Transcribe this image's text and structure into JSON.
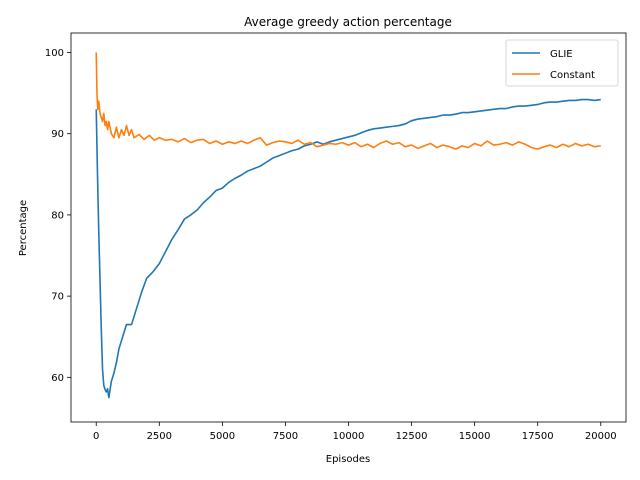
{
  "chart_data": {
    "type": "line",
    "title": "Average greedy action percentage",
    "xlabel": "Episodes",
    "ylabel": "Percentage",
    "xlim": [
      -1000,
      21000
    ],
    "ylim": [
      54.5,
      102.4
    ],
    "xticks": [
      0,
      2500,
      5000,
      7500,
      10000,
      12500,
      15000,
      17500,
      20000
    ],
    "yticks": [
      60,
      70,
      80,
      90,
      100
    ],
    "grid": false,
    "legend_position": "top-right",
    "series": [
      {
        "name": "GLIE",
        "color": "#1f77b4",
        "x": [
          0,
          50,
          100,
          150,
          200,
          250,
          300,
          350,
          400,
          450,
          500,
          600,
          700,
          800,
          900,
          1000,
          1200,
          1400,
          1600,
          1800,
          2000,
          2250,
          2500,
          2750,
          3000,
          3250,
          3500,
          3750,
          4000,
          4250,
          4500,
          4750,
          5000,
          5250,
          5500,
          5750,
          6000,
          6250,
          6500,
          6750,
          7000,
          7250,
          7500,
          7750,
          8000,
          8250,
          8500,
          8750,
          9000,
          9250,
          9500,
          9750,
          10000,
          10250,
          10500,
          10750,
          11000,
          11250,
          11500,
          11750,
          12000,
          12250,
          12500,
          12750,
          13000,
          13250,
          13500,
          13750,
          14000,
          14250,
          14500,
          14750,
          15000,
          15250,
          15500,
          15750,
          16000,
          16250,
          16500,
          16750,
          17000,
          17250,
          17500,
          17750,
          18000,
          18250,
          18500,
          18750,
          19000,
          19250,
          19500,
          19750,
          20000
        ],
        "values": [
          93,
          85,
          78,
          72,
          66,
          61,
          59,
          58.5,
          58.2,
          58.6,
          57.5,
          59.5,
          60.5,
          61.8,
          63.5,
          64.5,
          66.5,
          66.5,
          68.5,
          70.5,
          72.2,
          73,
          74,
          75.5,
          77,
          78.2,
          79.5,
          80,
          80.6,
          81.5,
          82.2,
          83,
          83.3,
          84,
          84.5,
          84.9,
          85.4,
          85.7,
          86,
          86.5,
          87,
          87.3,
          87.6,
          87.9,
          88.1,
          88.5,
          88.7,
          89,
          88.7,
          89,
          89.2,
          89.4,
          89.6,
          89.8,
          90.1,
          90.4,
          90.6,
          90.7,
          90.8,
          90.9,
          91,
          91.2,
          91.6,
          91.8,
          91.9,
          92,
          92.1,
          92.3,
          92.3,
          92.4,
          92.6,
          92.6,
          92.7,
          92.8,
          92.9,
          93,
          93.1,
          93.1,
          93.3,
          93.4,
          93.4,
          93.5,
          93.6,
          93.8,
          93.9,
          93.9,
          94,
          94.1,
          94.1,
          94.2,
          94.2,
          94.1,
          94.2
        ]
      },
      {
        "name": "Constant",
        "color": "#ff7f0e",
        "x": [
          0,
          30,
          60,
          100,
          150,
          200,
          250,
          300,
          350,
          400,
          450,
          500,
          600,
          700,
          800,
          900,
          1000,
          1100,
          1200,
          1300,
          1400,
          1500,
          1700,
          1900,
          2100,
          2300,
          2500,
          2750,
          3000,
          3250,
          3500,
          3750,
          4000,
          4250,
          4500,
          4750,
          5000,
          5250,
          5500,
          5750,
          6000,
          6250,
          6500,
          6750,
          7000,
          7250,
          7500,
          7750,
          8000,
          8250,
          8500,
          8750,
          9000,
          9250,
          9500,
          9750,
          10000,
          10250,
          10500,
          10750,
          11000,
          11250,
          11500,
          11750,
          12000,
          12250,
          12500,
          12750,
          13000,
          13250,
          13500,
          13750,
          14000,
          14250,
          14500,
          14750,
          15000,
          15250,
          15500,
          15750,
          16000,
          16250,
          16500,
          16750,
          17000,
          17250,
          17500,
          17750,
          18000,
          18250,
          18500,
          18750,
          19000,
          19250,
          19500,
          19750,
          20000
        ],
        "values": [
          100,
          95,
          93,
          94,
          92.5,
          92,
          91.5,
          92.5,
          91,
          91.5,
          90.5,
          91.5,
          90,
          89.5,
          90.8,
          89.5,
          90.5,
          89.8,
          91,
          89.8,
          90.5,
          89.5,
          89.9,
          89.3,
          89.8,
          89.2,
          89.5,
          89.2,
          89.3,
          89,
          89.4,
          88.9,
          89.2,
          89.3,
          88.8,
          89.1,
          88.7,
          89,
          88.8,
          89.1,
          88.8,
          89.2,
          89.5,
          88.6,
          88.9,
          89.1,
          89,
          88.8,
          89.2,
          88.7,
          88.9,
          88.4,
          88.6,
          88.8,
          88.7,
          88.9,
          88.6,
          88.9,
          88.4,
          88.7,
          88.3,
          88.8,
          89.1,
          88.7,
          88.9,
          88.4,
          88.6,
          88.2,
          88.5,
          88.8,
          88.3,
          88.6,
          88.4,
          88.1,
          88.5,
          88.3,
          88.8,
          88.5,
          89.1,
          88.6,
          88.7,
          88.9,
          88.6,
          89,
          88.7,
          88.3,
          88.1,
          88.4,
          88.6,
          88.3,
          88.7,
          88.4,
          88.8,
          88.5,
          88.7,
          88.4,
          88.5
        ]
      }
    ]
  }
}
